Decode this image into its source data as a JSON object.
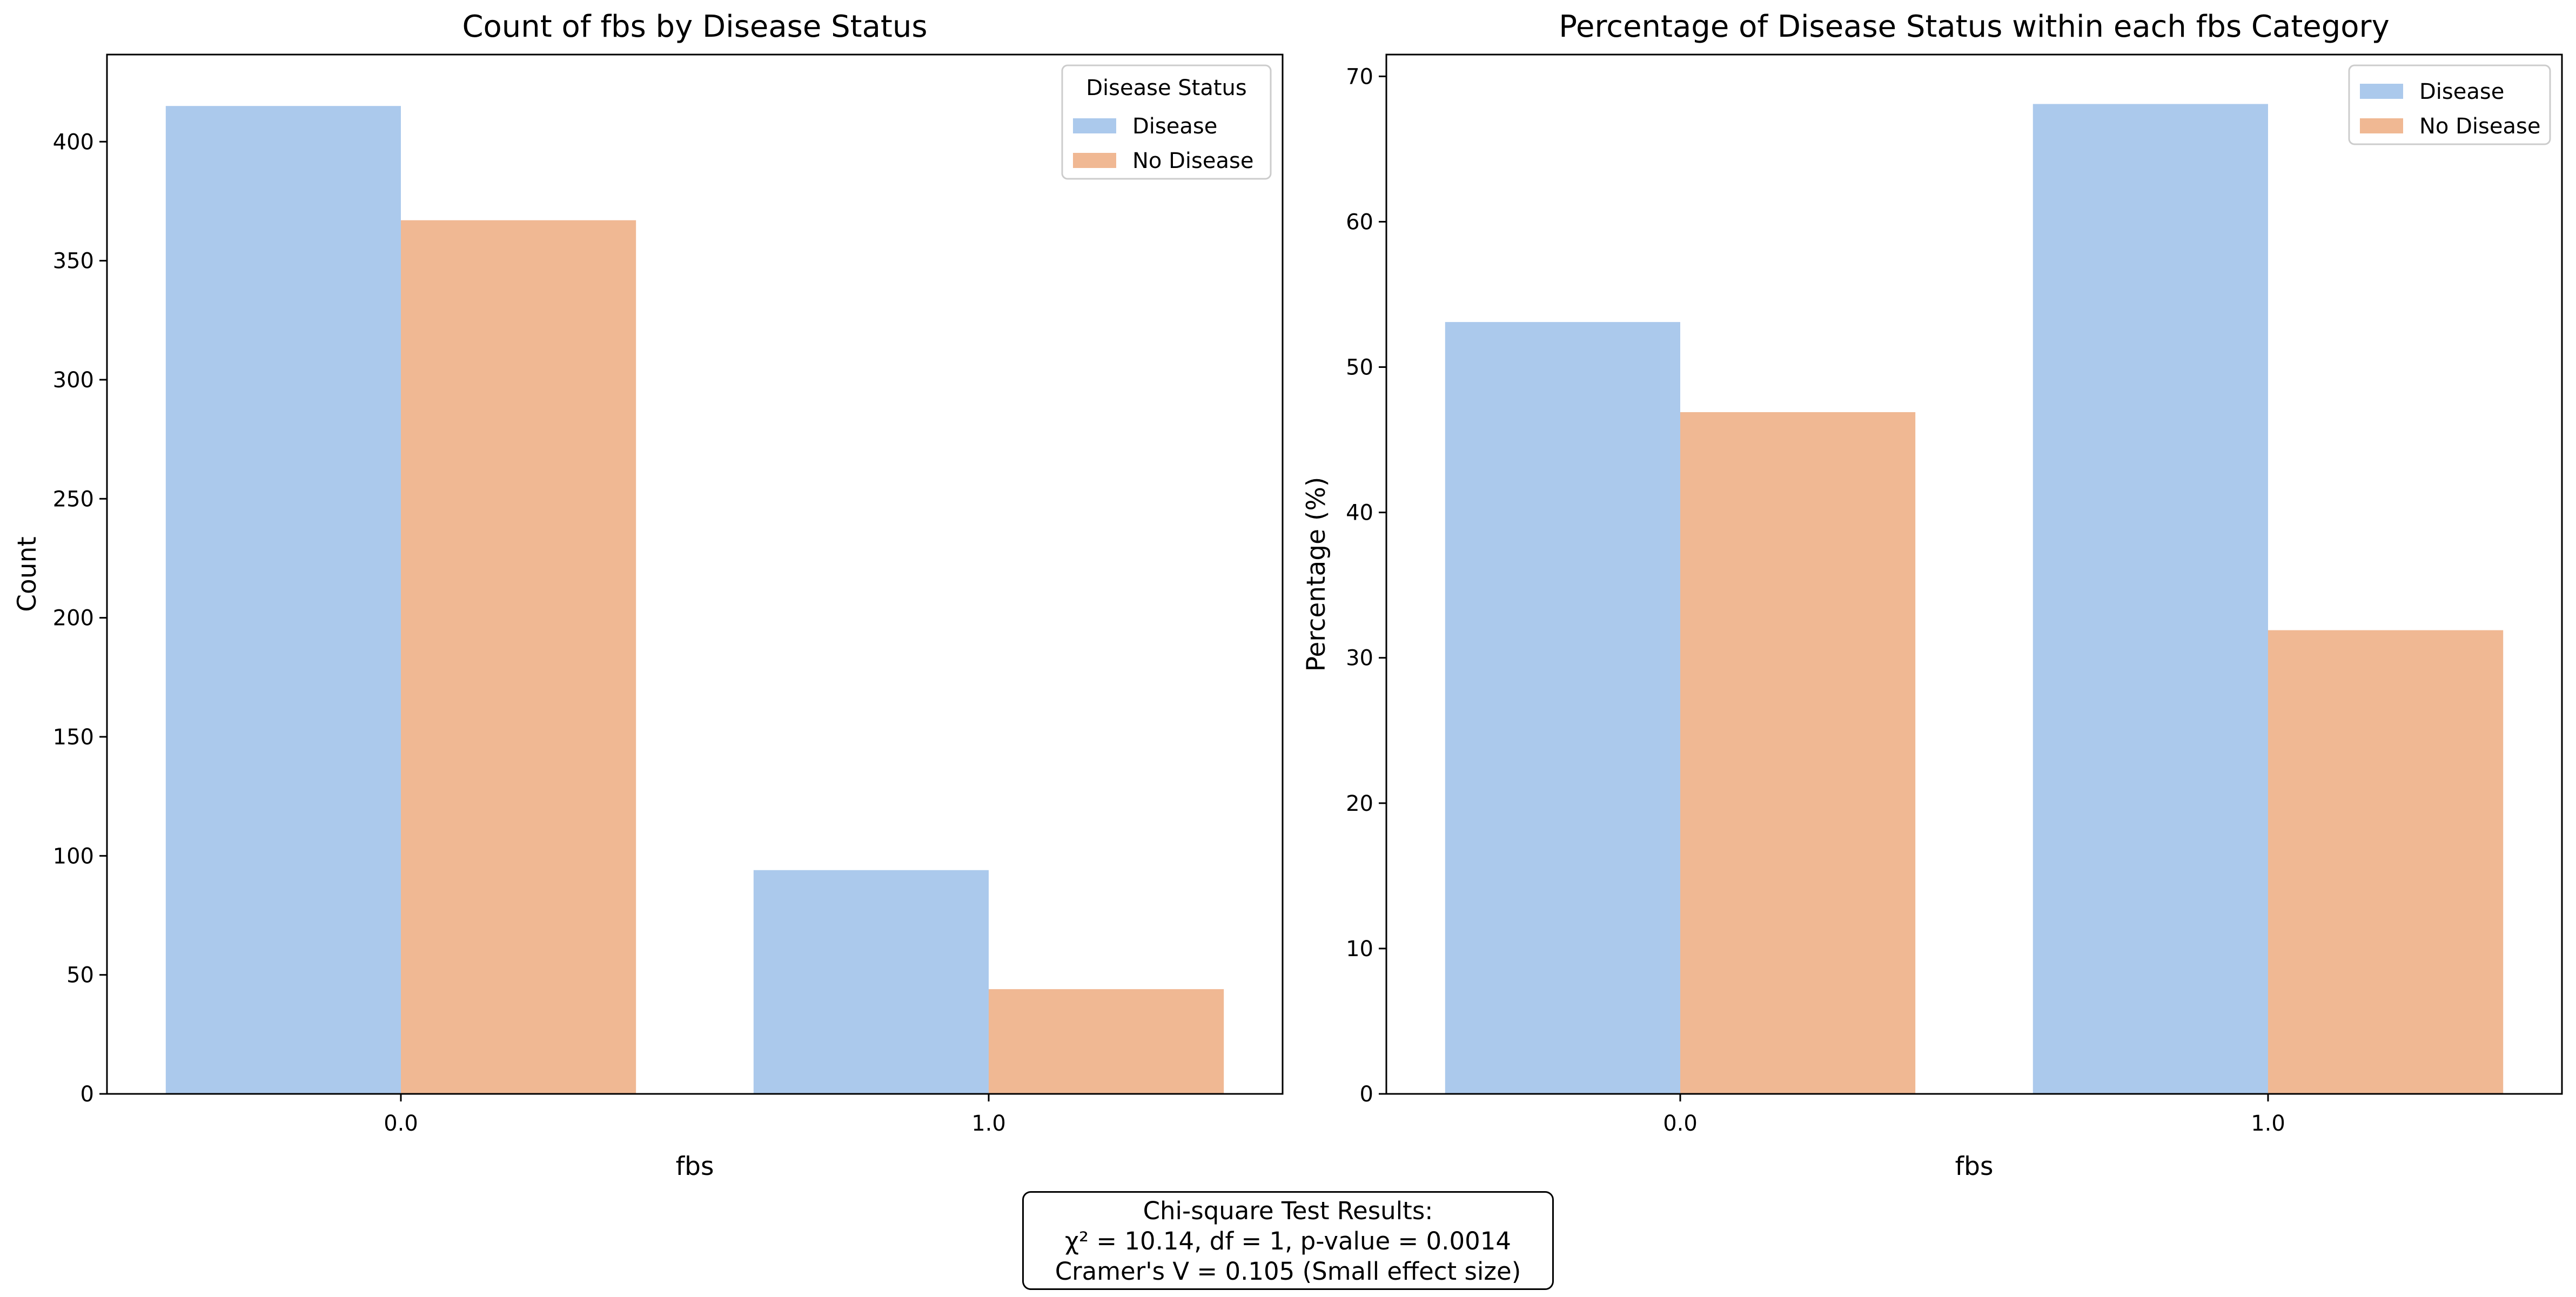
{
  "colors": {
    "disease": "#abc9ec",
    "no_disease": "#f0b893"
  },
  "chart_data": [
    {
      "type": "bar",
      "title": "Count of fbs by Disease Status",
      "xlabel": "fbs",
      "ylabel": "Count",
      "categories": [
        "0.0",
        "1.0"
      ],
      "series": [
        {
          "name": "Disease",
          "values": [
            415,
            94
          ]
        },
        {
          "name": "No Disease",
          "values": [
            367,
            44
          ]
        }
      ],
      "ylim": [
        0,
        436.6
      ],
      "yticks": [
        0,
        50,
        100,
        150,
        200,
        250,
        300,
        350,
        400
      ],
      "grid": false,
      "legend": {
        "title": "Disease Status",
        "placement": "top-right"
      }
    },
    {
      "type": "bar",
      "title": "Percentage of Disease Status within each fbs Category",
      "xlabel": "fbs",
      "ylabel": "Percentage (%)",
      "categories": [
        "0.0",
        "1.0"
      ],
      "series": [
        {
          "name": "Disease",
          "values": [
            53.1,
            68.1
          ]
        },
        {
          "name": "No Disease",
          "values": [
            46.9,
            31.9
          ]
        }
      ],
      "ylim": [
        0,
        71.5
      ],
      "yticks": [
        0,
        10,
        20,
        30,
        40,
        50,
        60,
        70
      ],
      "grid": false,
      "legend": {
        "title": "",
        "placement": "top-right"
      }
    }
  ],
  "stats": {
    "line1": "Chi-square Test Results:",
    "line2": "χ² = 10.14, df = 1, p-value = 0.0014",
    "line3": "Cramer's V = 0.105 (Small effect size)"
  }
}
